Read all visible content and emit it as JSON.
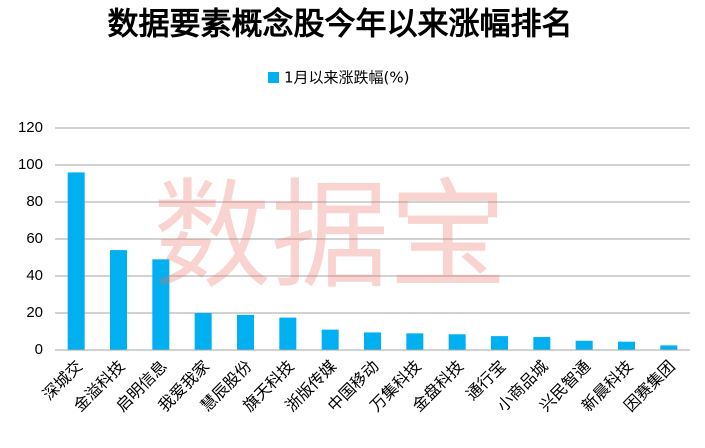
{
  "chart_data": {
    "type": "bar",
    "title": "数据要素概念股今年以来涨幅排名",
    "watermark": "数据宝",
    "categories": [
      "深城交",
      "金溢科技",
      "启明信息",
      "我爱我家",
      "慧辰股份",
      "旗天科技",
      "浙版传媒",
      "中国移动",
      "万集科技",
      "金盘科技",
      "通行宝",
      "小商品城",
      "兴民智通",
      "新晨科技",
      "因赛集团"
    ],
    "series": [
      {
        "name": "1月以来涨跌幅(%)",
        "color": "#00b0f0",
        "values": [
          96,
          54,
          49,
          20,
          19,
          17.5,
          11,
          9.5,
          9,
          8.5,
          7.5,
          7,
          5,
          4.5,
          2.5
        ]
      }
    ],
    "ylim": [
      0,
      120
    ],
    "yticks": [
      0,
      20,
      40,
      60,
      80,
      100,
      120
    ],
    "grid": true
  }
}
